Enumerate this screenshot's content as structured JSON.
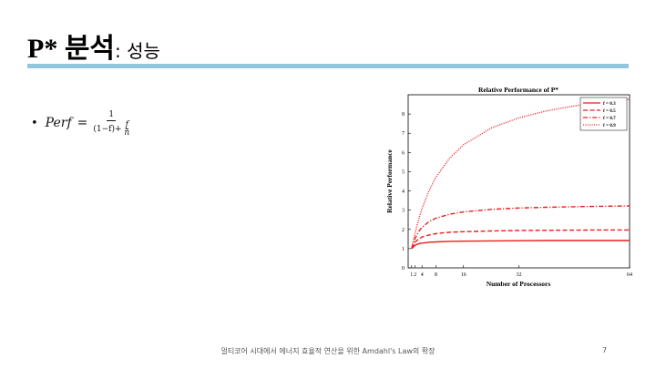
{
  "slide": {
    "title_main": "P* 분석",
    "title_sub": ": 성능",
    "bullet": {
      "lhs": "Perf",
      "equals": "=",
      "numerator": "1",
      "denominator_left": "(1−f)+",
      "denominator_frac_num": "f",
      "denominator_frac_den": "n"
    },
    "footer": "멀티코어 시대에서 에너지 효율적 연산을 위한 Amdahl's Law의 확장",
    "page_number": "7"
  },
  "chart_data": {
    "type": "line",
    "title": "Relative Performance of P*",
    "xlabel": "Number of Processors",
    "ylabel": "Relative Performance",
    "xlim": [
      0,
      64
    ],
    "ylim": [
      0,
      9
    ],
    "x_ticks": [
      1,
      2,
      4,
      8,
      16,
      32,
      64
    ],
    "x_tick_labels": [
      "1",
      "2",
      "4",
      "8",
      "16",
      "32",
      "64"
    ],
    "y_ticks": [
      0,
      1,
      2,
      3,
      4,
      5,
      6,
      7,
      8
    ],
    "y_tick_labels": [
      "0",
      "1",
      "2",
      "3",
      "4",
      "5",
      "6",
      "7",
      "8"
    ],
    "legend_position": "top-right",
    "line_color": "#ee1c1c",
    "x": [
      1,
      2,
      3,
      4,
      6,
      8,
      12,
      16,
      24,
      32,
      40,
      48,
      56,
      64
    ],
    "series": [
      {
        "name": "f = 0.3",
        "style": "solid",
        "values": [
          1.0,
          1.18,
          1.25,
          1.29,
          1.33,
          1.35,
          1.38,
          1.39,
          1.4,
          1.41,
          1.42,
          1.42,
          1.42,
          1.42
        ]
      },
      {
        "name": "f = 0.5",
        "style": "dashed",
        "values": [
          1.0,
          1.33,
          1.5,
          1.6,
          1.71,
          1.78,
          1.85,
          1.88,
          1.92,
          1.94,
          1.95,
          1.96,
          1.97,
          1.97
        ]
      },
      {
        "name": "f = 0.7",
        "style": "dashdot",
        "values": [
          1.0,
          1.54,
          1.88,
          2.11,
          2.4,
          2.58,
          2.79,
          2.91,
          3.04,
          3.11,
          3.15,
          3.18,
          3.2,
          3.22
        ]
      },
      {
        "name": "f = 0.9",
        "style": "dotted",
        "values": [
          1.0,
          1.82,
          2.5,
          3.08,
          4.0,
          4.71,
          5.71,
          6.4,
          7.27,
          7.8,
          8.16,
          8.42,
          8.62,
          8.77
        ]
      }
    ]
  }
}
